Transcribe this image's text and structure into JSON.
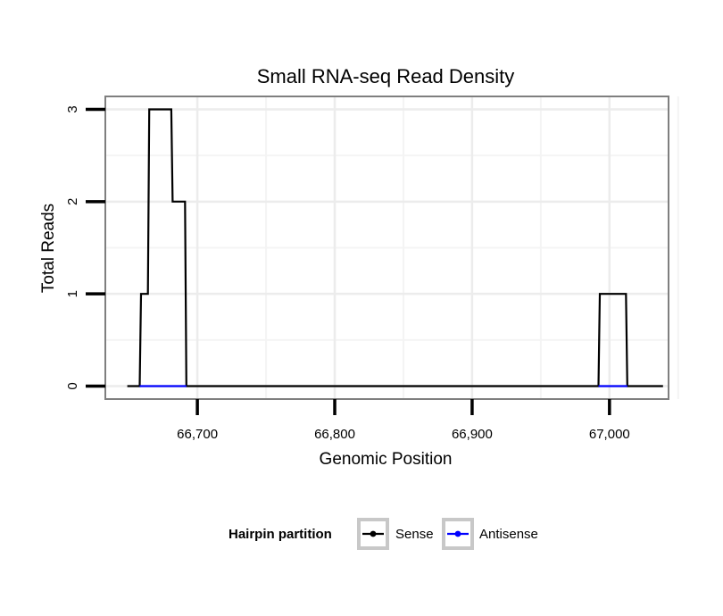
{
  "chart_data": {
    "type": "line",
    "title": "Small RNA-seq Read Density",
    "xlabel": "Genomic Position",
    "ylabel": "Total Reads",
    "xlim": [
      66633,
      67043
    ],
    "ylim": [
      -0.14,
      3.14
    ],
    "x_ticks": [
      66700,
      66800,
      66900,
      67000
    ],
    "x_tick_labels": [
      "66,700",
      "66,800",
      "66,900",
      "67,000"
    ],
    "y_ticks": [
      0,
      1,
      2,
      3
    ],
    "y_tick_labels": [
      "0",
      "1",
      "2",
      "3"
    ],
    "grid": true,
    "legend": {
      "title": "Hairpin partition",
      "position": "bottom",
      "entries": [
        "Sense",
        "Antisense"
      ]
    },
    "series": [
      {
        "name": "Sense",
        "color": "#000000",
        "x": [
          66649,
          66658,
          66659,
          66664,
          66665,
          66681,
          66682,
          66691,
          66692,
          66992,
          66993,
          67012,
          67013,
          67039
        ],
        "y": [
          0,
          0,
          1,
          1,
          3,
          3,
          2,
          2,
          0,
          0,
          1,
          1,
          0,
          0
        ]
      },
      {
        "name": "Antisense",
        "color": "#0000ff",
        "x": [
          66658,
          66692,
          66992,
          67013
        ],
        "y": [
          0,
          0,
          0,
          0
        ],
        "segments": [
          [
            66658,
            66692
          ],
          [
            66992,
            67013
          ]
        ]
      }
    ]
  }
}
